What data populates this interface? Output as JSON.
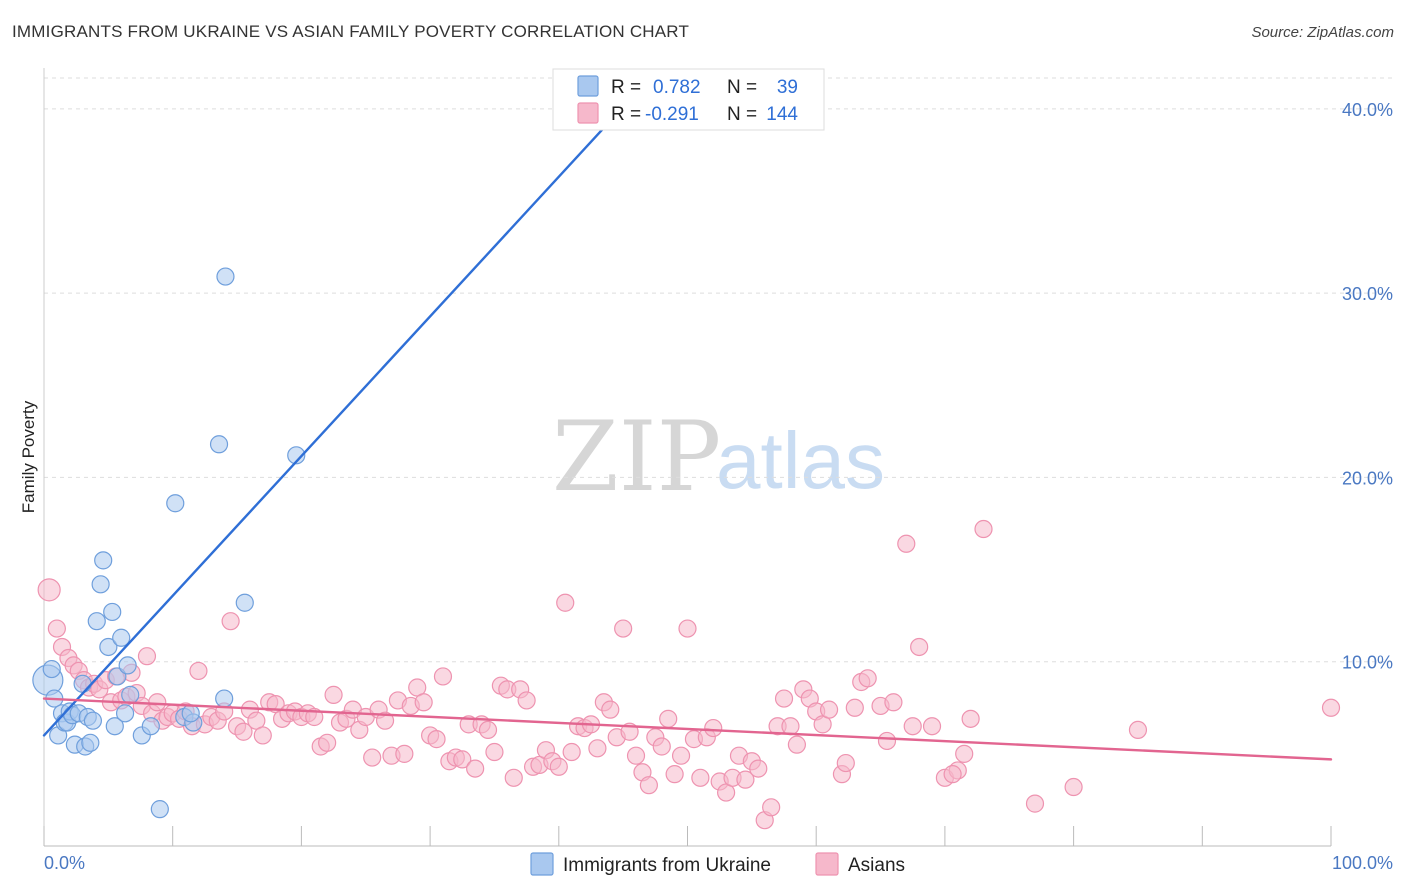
{
  "header": {
    "title": "IMMIGRANTS FROM UKRAINE VS ASIAN FAMILY POVERTY CORRELATION CHART",
    "source": "Source: ZipAtlas.com"
  },
  "watermark": {
    "zip": "ZIP",
    "atlas": "atlas"
  },
  "colors": {
    "ukraine_fill": "#a9c8ef",
    "ukraine_stroke": "#6f9fdc",
    "ukraine_line": "#2f6fd6",
    "asians_fill": "#f6b8cb",
    "asians_stroke": "#ee93b0",
    "asians_line": "#e26590",
    "tick_text": "#4a78c2",
    "grid": "#dddddd"
  },
  "legend": {
    "rows": [
      {
        "r_label": "R =",
        "r_value": "0.782",
        "n_label": "N =",
        "n_value": "39"
      },
      {
        "r_label": "R =",
        "r_value": "-0.291",
        "n_label": "N =",
        "n_value": "144"
      }
    ]
  },
  "chart_data": {
    "type": "scatter",
    "title": "IMMIGRANTS FROM UKRAINE VS ASIAN FAMILY POVERTY CORRELATION CHART",
    "xlabel": "",
    "ylabel": "Family Poverty",
    "xlim": [
      0,
      100
    ],
    "ylim": [
      0,
      42
    ],
    "x_tick_labels": [
      "0.0%",
      "100.0%"
    ],
    "y_ticks": [
      10,
      20,
      30,
      40
    ],
    "y_tick_labels": [
      "10.0%",
      "20.0%",
      "30.0%",
      "40.0%"
    ],
    "grid": "horizontal dashed",
    "legend_placement": "bottom",
    "series": [
      {
        "name": "Immigrants from Ukraine",
        "r": 0.782,
        "n": 39,
        "trend": {
          "x": [
            0,
            47.5
          ],
          "y": [
            6.0,
            42.0
          ]
        },
        "points": [
          [
            0.3,
            9.0
          ],
          [
            0.6,
            9.6
          ],
          [
            0.8,
            8.0
          ],
          [
            1.1,
            6.0
          ],
          [
            1.4,
            7.2
          ],
          [
            1.6,
            6.7
          ],
          [
            1.8,
            6.7
          ],
          [
            2.0,
            7.3
          ],
          [
            2.2,
            7.1
          ],
          [
            2.4,
            5.5
          ],
          [
            2.7,
            7.2
          ],
          [
            3.0,
            8.8
          ],
          [
            3.2,
            5.4
          ],
          [
            3.4,
            7.0
          ],
          [
            3.6,
            5.6
          ],
          [
            3.8,
            6.8
          ],
          [
            4.1,
            12.2
          ],
          [
            4.4,
            14.2
          ],
          [
            4.6,
            15.5
          ],
          [
            5.0,
            10.8
          ],
          [
            5.3,
            12.7
          ],
          [
            5.5,
            6.5
          ],
          [
            5.7,
            9.2
          ],
          [
            6.0,
            11.3
          ],
          [
            6.3,
            7.2
          ],
          [
            6.5,
            9.8
          ],
          [
            6.7,
            8.2
          ],
          [
            7.6,
            6.0
          ],
          [
            8.3,
            6.5
          ],
          [
            9.0,
            2.0
          ],
          [
            10.2,
            18.6
          ],
          [
            10.9,
            7.0
          ],
          [
            11.6,
            6.7
          ],
          [
            13.6,
            21.8
          ],
          [
            14.1,
            30.9
          ],
          [
            14.0,
            8.0
          ],
          [
            15.6,
            13.2
          ],
          [
            19.6,
            21.2
          ],
          [
            11.4,
            7.2
          ]
        ]
      },
      {
        "name": "Asians",
        "r": -0.291,
        "n": 144,
        "trend": {
          "x": [
            0,
            100
          ],
          "y": [
            8.0,
            4.7
          ]
        },
        "points": [
          [
            0.4,
            13.9
          ],
          [
            1.0,
            11.8
          ],
          [
            1.4,
            10.8
          ],
          [
            1.9,
            10.2
          ],
          [
            2.3,
            9.8
          ],
          [
            2.7,
            9.5
          ],
          [
            3.1,
            9.0
          ],
          [
            3.5,
            8.6
          ],
          [
            3.9,
            8.8
          ],
          [
            4.3,
            8.5
          ],
          [
            4.8,
            9.0
          ],
          [
            5.2,
            7.8
          ],
          [
            5.6,
            9.2
          ],
          [
            6.0,
            7.9
          ],
          [
            6.4,
            8.1
          ],
          [
            6.8,
            9.4
          ],
          [
            7.2,
            8.3
          ],
          [
            7.6,
            7.6
          ],
          [
            8.0,
            10.3
          ],
          [
            8.4,
            7.2
          ],
          [
            8.8,
            7.8
          ],
          [
            9.2,
            6.8
          ],
          [
            9.6,
            7.0
          ],
          [
            10.0,
            7.2
          ],
          [
            10.5,
            6.9
          ],
          [
            11.0,
            7.3
          ],
          [
            11.5,
            6.5
          ],
          [
            12.0,
            9.5
          ],
          [
            12.5,
            6.6
          ],
          [
            13.0,
            7.0
          ],
          [
            13.5,
            6.8
          ],
          [
            14.0,
            7.3
          ],
          [
            14.5,
            12.2
          ],
          [
            15.0,
            6.5
          ],
          [
            15.5,
            6.2
          ],
          [
            16.0,
            7.4
          ],
          [
            16.5,
            6.8
          ],
          [
            17.0,
            6.0
          ],
          [
            17.5,
            7.8
          ],
          [
            18.0,
            7.7
          ],
          [
            18.5,
            6.9
          ],
          [
            19.0,
            7.2
          ],
          [
            19.5,
            7.3
          ],
          [
            20.0,
            7.0
          ],
          [
            20.5,
            7.2
          ],
          [
            21.0,
            7.0
          ],
          [
            21.5,
            5.4
          ],
          [
            22.0,
            5.6
          ],
          [
            22.5,
            8.2
          ],
          [
            23.0,
            6.7
          ],
          [
            23.5,
            6.9
          ],
          [
            24.0,
            7.4
          ],
          [
            24.5,
            6.3
          ],
          [
            25.0,
            7.0
          ],
          [
            25.5,
            4.8
          ],
          [
            26.0,
            7.4
          ],
          [
            26.5,
            6.8
          ],
          [
            27.0,
            4.9
          ],
          [
            27.5,
            7.9
          ],
          [
            28.0,
            5.0
          ],
          [
            28.5,
            7.6
          ],
          [
            29.0,
            8.6
          ],
          [
            29.5,
            7.8
          ],
          [
            30.0,
            6.0
          ],
          [
            30.5,
            5.8
          ],
          [
            31.0,
            9.2
          ],
          [
            31.5,
            4.6
          ],
          [
            32.0,
            4.8
          ],
          [
            32.5,
            4.7
          ],
          [
            33.0,
            6.6
          ],
          [
            33.5,
            4.2
          ],
          [
            34.0,
            6.6
          ],
          [
            34.5,
            6.3
          ],
          [
            35.0,
            5.1
          ],
          [
            35.5,
            8.7
          ],
          [
            36.0,
            8.5
          ],
          [
            36.5,
            3.7
          ],
          [
            37.0,
            8.5
          ],
          [
            37.5,
            7.9
          ],
          [
            38.0,
            4.3
          ],
          [
            38.5,
            4.4
          ],
          [
            39.0,
            5.2
          ],
          [
            39.5,
            4.6
          ],
          [
            40.0,
            4.3
          ],
          [
            40.5,
            13.2
          ],
          [
            41.0,
            5.1
          ],
          [
            41.5,
            6.5
          ],
          [
            42.0,
            6.4
          ],
          [
            42.5,
            6.6
          ],
          [
            43.0,
            5.3
          ],
          [
            43.5,
            7.8
          ],
          [
            44.0,
            7.4
          ],
          [
            44.5,
            5.9
          ],
          [
            45.0,
            11.8
          ],
          [
            45.5,
            6.2
          ],
          [
            46.0,
            4.9
          ],
          [
            46.5,
            4.0
          ],
          [
            47.0,
            3.3
          ],
          [
            47.5,
            5.9
          ],
          [
            48.0,
            5.4
          ],
          [
            48.5,
            6.9
          ],
          [
            49.0,
            3.9
          ],
          [
            49.5,
            4.9
          ],
          [
            50.0,
            11.8
          ],
          [
            50.5,
            5.8
          ],
          [
            51.0,
            3.7
          ],
          [
            51.5,
            5.9
          ],
          [
            52.0,
            6.4
          ],
          [
            52.5,
            3.5
          ],
          [
            53.0,
            2.9
          ],
          [
            53.5,
            3.7
          ],
          [
            54.0,
            4.9
          ],
          [
            54.5,
            3.6
          ],
          [
            55.0,
            4.6
          ],
          [
            55.5,
            4.2
          ],
          [
            56.0,
            1.4
          ],
          [
            56.5,
            2.1
          ],
          [
            57.0,
            6.5
          ],
          [
            57.5,
            8.0
          ],
          [
            58.0,
            6.5
          ],
          [
            58.5,
            5.5
          ],
          [
            59.0,
            8.5
          ],
          [
            59.5,
            8.0
          ],
          [
            60.0,
            7.3
          ],
          [
            60.5,
            6.6
          ],
          [
            61.0,
            7.4
          ],
          [
            62.0,
            3.9
          ],
          [
            62.3,
            4.5
          ],
          [
            63.0,
            7.5
          ],
          [
            63.5,
            8.9
          ],
          [
            64.0,
            9.1
          ],
          [
            65.0,
            7.6
          ],
          [
            65.5,
            5.7
          ],
          [
            66.0,
            7.8
          ],
          [
            67.0,
            16.4
          ],
          [
            67.5,
            6.5
          ],
          [
            68.0,
            10.8
          ],
          [
            69.0,
            6.5
          ],
          [
            70.0,
            3.7
          ],
          [
            71.0,
            4.1
          ],
          [
            71.5,
            5.0
          ],
          [
            72.0,
            6.9
          ],
          [
            73.0,
            17.2
          ],
          [
            77.0,
            2.3
          ],
          [
            80.0,
            3.2
          ],
          [
            85.0,
            6.3
          ],
          [
            100.0,
            7.5
          ],
          [
            70.6,
            3.9
          ]
        ]
      }
    ]
  },
  "bottom_legend": {
    "items": [
      {
        "label": "Immigrants from Ukraine"
      },
      {
        "label": "Asians"
      }
    ]
  }
}
